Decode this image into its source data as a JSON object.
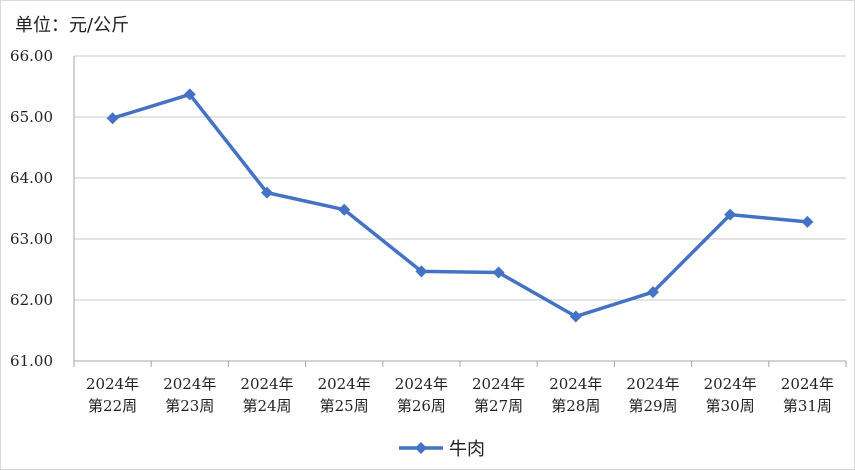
{
  "unit_label": "单位：元/公斤",
  "colors": {
    "series": "#4472C4",
    "grid": "#c8c8c8",
    "axis": "#a6a6a6"
  },
  "chart_data": {
    "type": "line",
    "categories": [
      [
        "2024年",
        "第22周"
      ],
      [
        "2024年",
        "第23周"
      ],
      [
        "2024年",
        "第24周"
      ],
      [
        "2024年",
        "第25周"
      ],
      [
        "2024年",
        "第26周"
      ],
      [
        "2024年",
        "第27周"
      ],
      [
        "2024年",
        "第28周"
      ],
      [
        "2024年",
        "第29周"
      ],
      [
        "2024年",
        "第30周"
      ],
      [
        "2024年",
        "第31周"
      ]
    ],
    "series": [
      {
        "name": "牛肉",
        "values": [
          64.98,
          65.37,
          63.76,
          63.48,
          62.47,
          62.45,
          61.73,
          62.13,
          63.4,
          63.28
        ]
      }
    ],
    "yticks": [
      "61.00",
      "62.00",
      "63.00",
      "64.00",
      "65.00",
      "66.00"
    ],
    "ylim": [
      61,
      66
    ],
    "grid": true,
    "marker": "diamond",
    "legend_position": "bottom-center"
  }
}
